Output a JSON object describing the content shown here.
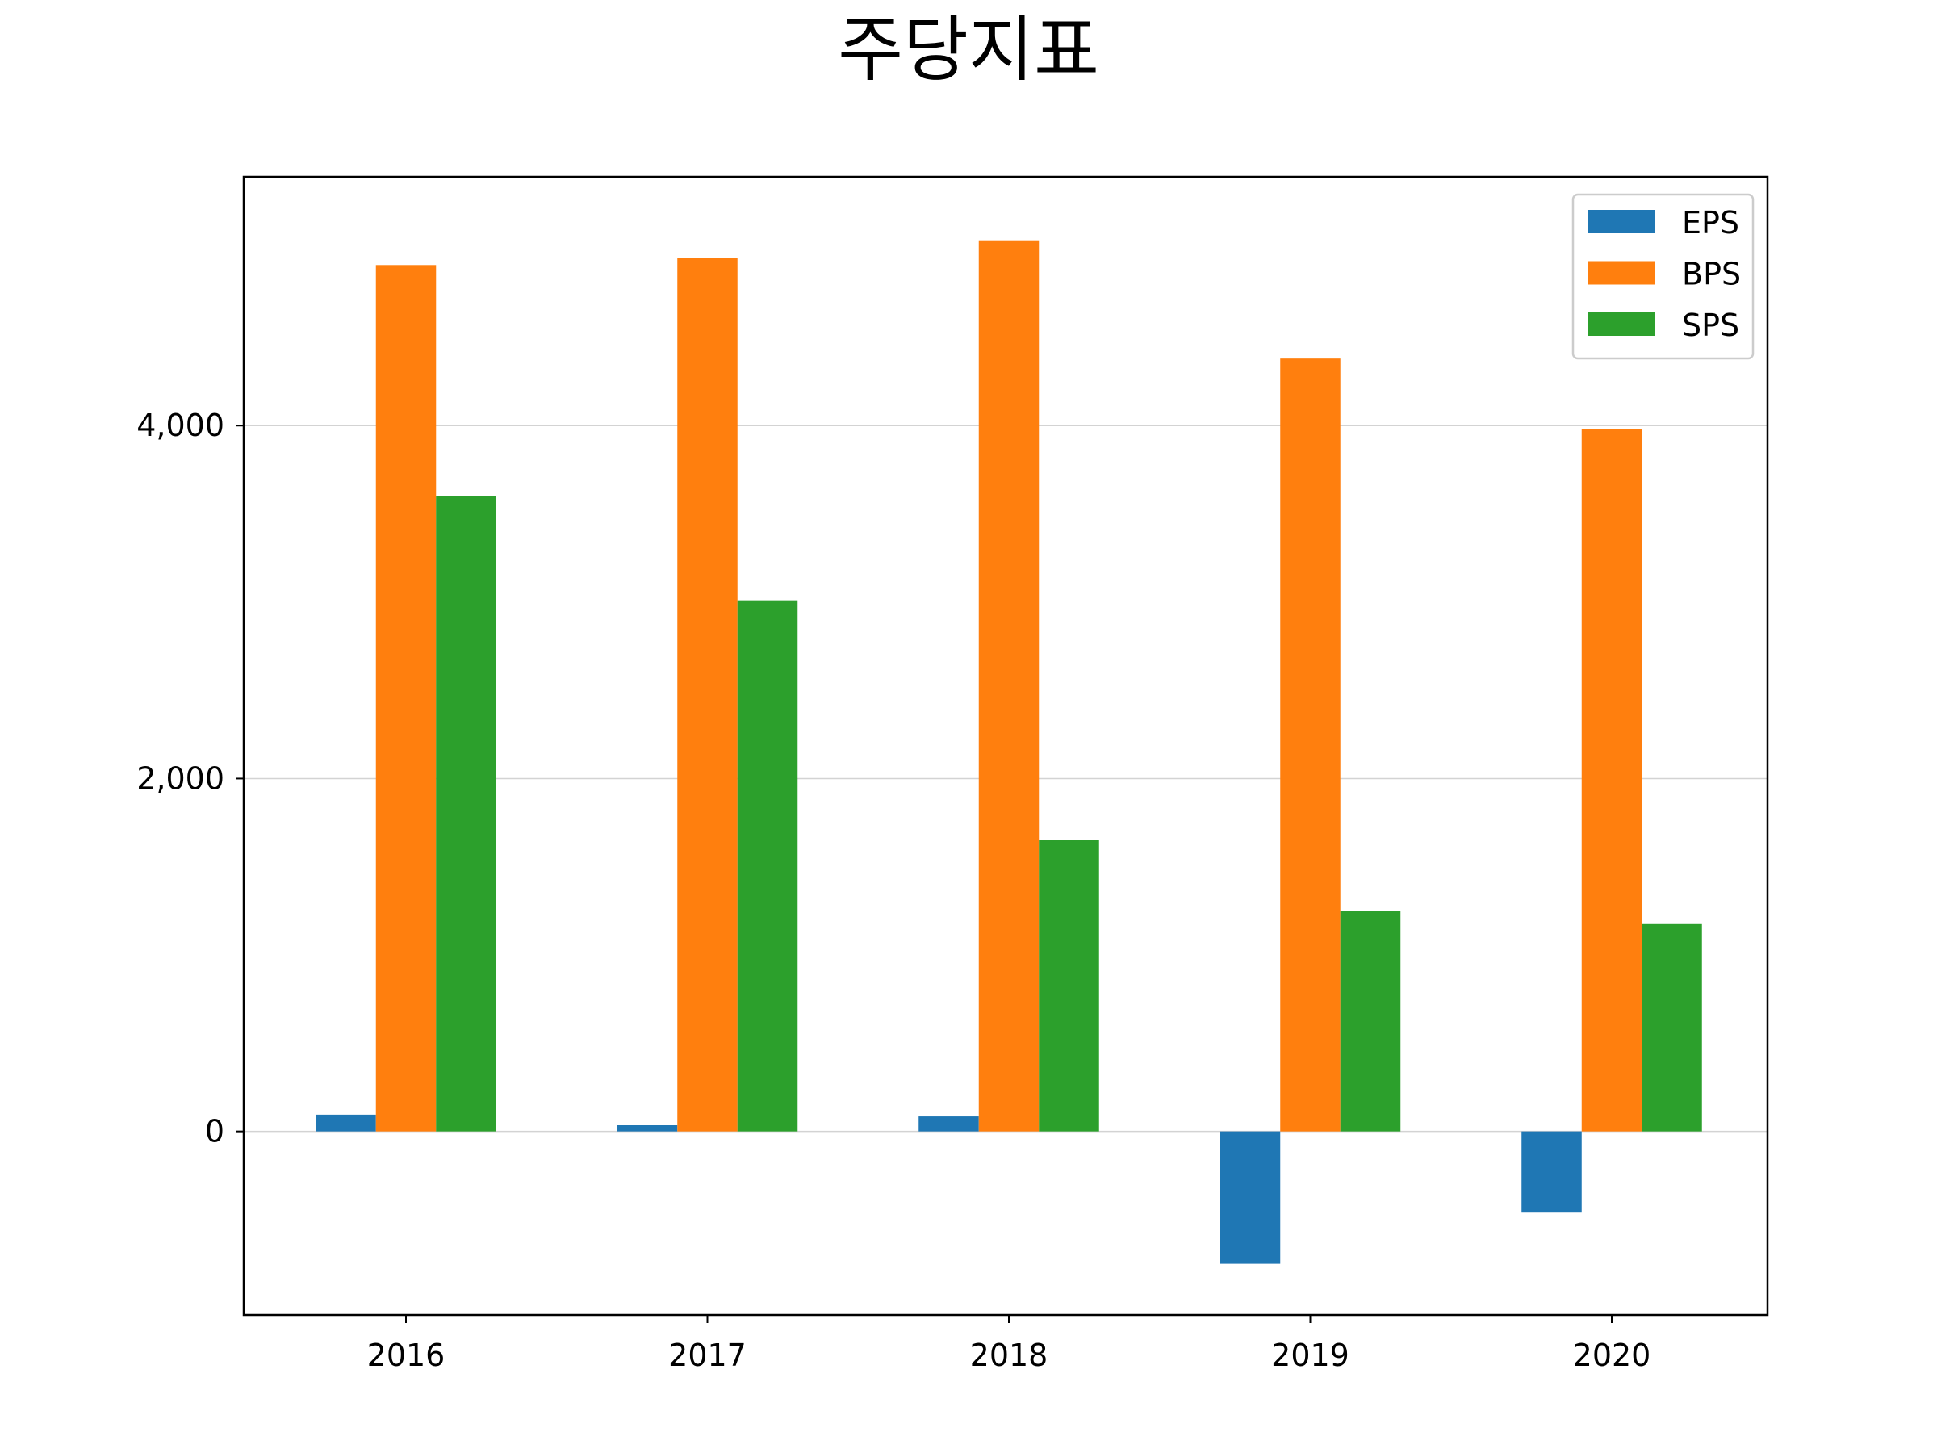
{
  "chart_data": {
    "type": "bar",
    "title": "주당지표",
    "xlabel": "",
    "ylabel": "",
    "categories": [
      "2016",
      "2017",
      "2018",
      "2019",
      "2020"
    ],
    "series": [
      {
        "name": "EPS",
        "color": "#1f77b4",
        "values": [
          95,
          35,
          85,
          -750,
          -460
        ]
      },
      {
        "name": "BPS",
        "color": "#ff7f0e",
        "values": [
          4910,
          4950,
          5050,
          4380,
          3980
        ]
      },
      {
        "name": "SPS",
        "color": "#2ca02c",
        "values": [
          3600,
          3010,
          1650,
          1250,
          1175
        ]
      }
    ],
    "ylim": [
      -1040,
      5410
    ],
    "yticks": [
      0,
      2000,
      4000
    ],
    "ytick_labels": [
      "0",
      "2,000",
      "4,000"
    ],
    "grid": "y",
    "legend_position": "upper right"
  }
}
